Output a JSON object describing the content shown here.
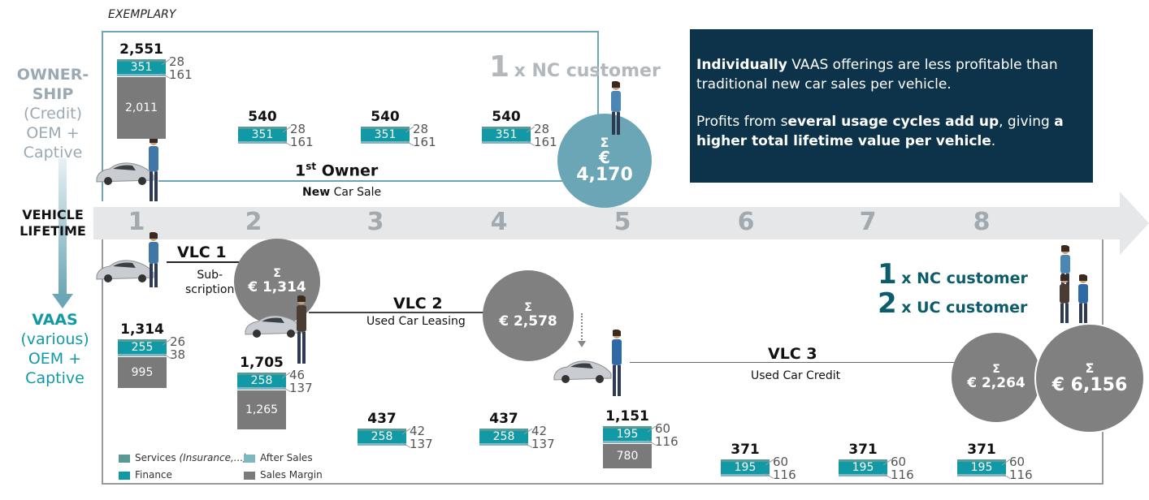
{
  "exemplary": "EXEMPLARY",
  "left_top": {
    "line1": "OWNER-",
    "line2": "SHIP",
    "line3": "(Credit)",
    "line4": "OEM +",
    "line5": "Captive"
  },
  "left_mid": {
    "line1": "VEHICLE",
    "line2": "LIFETIME"
  },
  "left_bot": {
    "line1": "VAAS",
    "line2": "(various)",
    "line3": "OEM +",
    "line4": "Captive"
  },
  "years": [
    "1",
    "2",
    "3",
    "4",
    "5",
    "6",
    "7",
    "8"
  ],
  "top": {
    "customer_num": "1",
    "customer_text": "x NC customer",
    "owner_title_main": "1",
    "owner_title_sup": "st",
    "owner_title_rest": " Owner",
    "owner_sub_bold": "New",
    "owner_sub_rest": " Car Sale",
    "sigma": "Σ",
    "euro": "€",
    "total": "4,170"
  },
  "message": {
    "p1_bold": "Individually",
    "p1_rest": " VAAS offerings are less profitable than traditional new car sales per vehicle.",
    "p2_a": "Profits from s",
    "p2_b": "everal usage cycles add up",
    "p2_c": ", giving ",
    "p2_d": "a higher total lifetime value per vehicle",
    "p2_e": "."
  },
  "bottom": {
    "vlc1_title": "VLC 1",
    "vlc1_sub1": "Sub-",
    "vlc1_sub2": "scription",
    "vlc1_total": "€ 1,314",
    "vlc2_title": "VLC 2",
    "vlc2_sub": "Used Car Leasing",
    "vlc2_total": "€ 2,578",
    "vlc3_title": "VLC 3",
    "vlc3_sub": "Used Car Credit",
    "vlc3_total": "€ 2,264",
    "grand_total": "€ 6,156",
    "sigma": "Σ",
    "nc_num": "1",
    "nc_text": "x NC customer",
    "uc_num": "2",
    "uc_text": "x UC customer"
  },
  "legend": {
    "services": "Services",
    "services_it": "(Insurance,...)",
    "after_sales": "After Sales",
    "finance": "Finance",
    "sales_margin": "Sales Margin"
  },
  "colors": {
    "services": "#5a9a95",
    "after_sales": "#7fb6c2",
    "finance": "#119aa6",
    "sales_margin": "#7a7a7a",
    "navy": "#0c3349",
    "teal_circle": "#6aa6b5",
    "grey_circle": "#808080"
  },
  "chart_data": {
    "type": "bar",
    "stacked": true,
    "series_names": [
      "Services (Insurance,...)",
      "After Sales",
      "Finance",
      "Sales Margin"
    ],
    "ownership": [
      {
        "year": "1",
        "total": "2,551",
        "finance": "351",
        "services": "28",
        "after_sales": "161",
        "sales_margin": "2,011"
      },
      {
        "year": "2",
        "total": "540",
        "finance": "351",
        "services": "28",
        "after_sales": "161"
      },
      {
        "year": "3",
        "total": "540",
        "finance": "351",
        "services": "28",
        "after_sales": "161"
      },
      {
        "year": "4",
        "total": "540",
        "finance": "351",
        "services": "28",
        "after_sales": "161"
      }
    ],
    "vaas": [
      {
        "year": "1",
        "total": "1,314",
        "finance": "255",
        "services": "26",
        "after_sales": "38",
        "sales_margin": "995"
      },
      {
        "year": "2",
        "total": "1,705",
        "finance": "258",
        "services": "46",
        "after_sales": "137",
        "sales_margin": "1,265"
      },
      {
        "year": "3",
        "total": "437",
        "finance": "258",
        "services": "42",
        "after_sales": "137"
      },
      {
        "year": "4",
        "total": "437",
        "finance": "258",
        "services": "42",
        "after_sales": "137"
      },
      {
        "year": "5",
        "total": "1,151",
        "finance": "195",
        "services": "60",
        "after_sales": "116",
        "sales_margin": "780"
      },
      {
        "year": "6",
        "total": "371",
        "finance": "195",
        "services": "60",
        "after_sales": "116"
      },
      {
        "year": "7",
        "total": "371",
        "finance": "195",
        "services": "60",
        "after_sales": "116"
      },
      {
        "year": "8",
        "total": "371",
        "finance": "195",
        "services": "60",
        "after_sales": "116"
      }
    ]
  }
}
